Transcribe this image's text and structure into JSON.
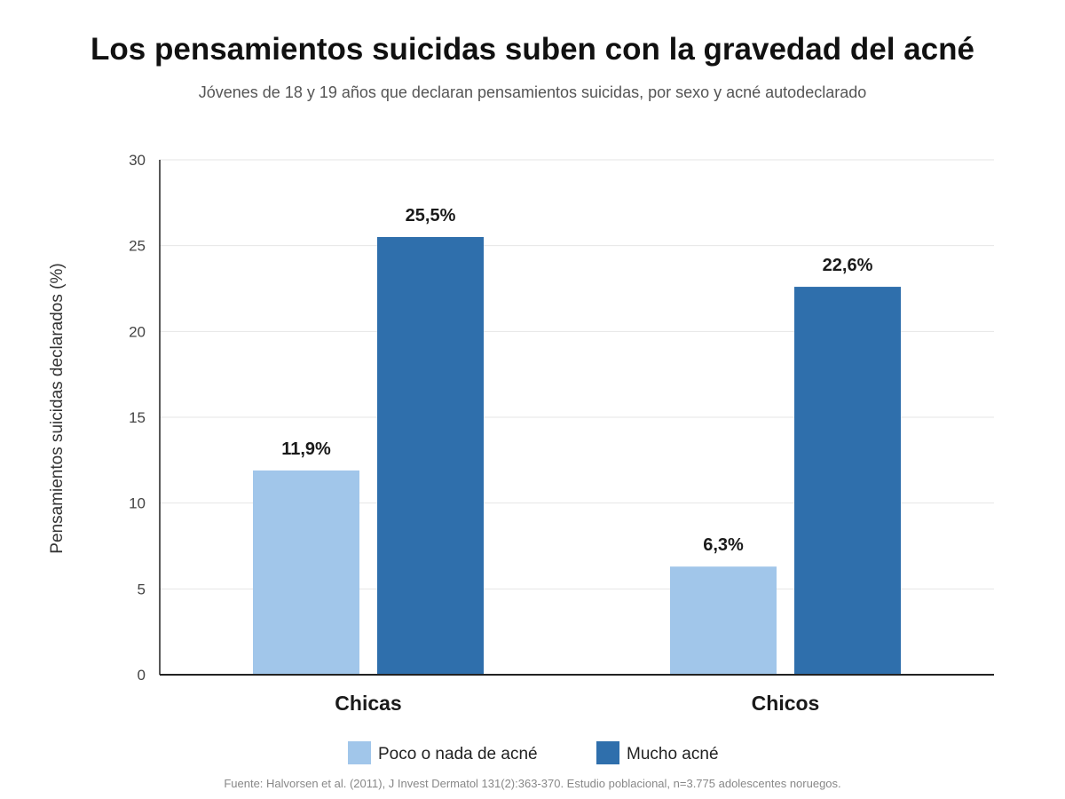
{
  "header": {
    "title": "Los pensamientos suicidas suben con la gravedad del acné",
    "subtitle": "Jóvenes de 18 y 19 años que declaran pensamientos suicidas, por sexo y acné autodeclarado"
  },
  "footer": {
    "source": "Fuente: Halvorsen et al. (2011), J Invest Dermatol 131(2):363-370. Estudio poblacional, n=3.775 adolescentes noruegos."
  },
  "colors": {
    "series_light": "#a1c6ea",
    "series_dark": "#2f6fac"
  },
  "chart_data": {
    "type": "bar",
    "title": "Los pensamientos suicidas suben con la gravedad del acné",
    "subtitle": "Jóvenes de 18 y 19 años que declaran pensamientos suicidas, por sexo y acné autodeclarado",
    "ylabel": "Pensamientos suicidas declarados (%)",
    "xlabel": "",
    "ylim": [
      0,
      30
    ],
    "yticks": [
      0,
      5,
      10,
      15,
      20,
      25,
      30
    ],
    "grid": true,
    "legend_position": "bottom",
    "categories": [
      "Chicas",
      "Chicos"
    ],
    "series": [
      {
        "name": "Poco o nada de acné",
        "values": [
          11.9,
          6.3
        ],
        "labels": [
          "11,9%",
          "6,3%"
        ],
        "color": "#a1c6ea"
      },
      {
        "name": "Mucho acné",
        "values": [
          25.5,
          22.6
        ],
        "labels": [
          "25,5%",
          "22,6%"
        ],
        "color": "#2f6fac"
      }
    ]
  }
}
